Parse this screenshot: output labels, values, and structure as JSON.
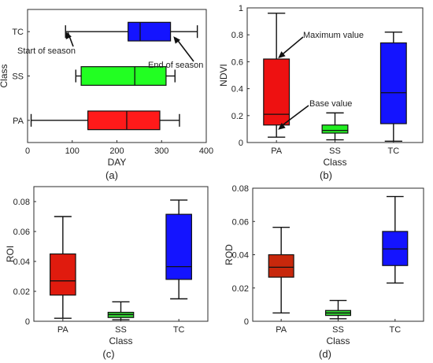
{
  "chart_data": [
    {
      "id": "a",
      "type": "box",
      "orientation": "horizontal",
      "panel_label": "(a)",
      "xlabel": "DAY",
      "ylabel": "Class",
      "xlim": [
        0,
        400
      ],
      "xticks": [
        0,
        100,
        200,
        300,
        400
      ],
      "categories": [
        "PA",
        "SS",
        "TC"
      ],
      "boxes": [
        {
          "category": "PA",
          "min": 8,
          "q1": 135,
          "median": 222,
          "q3": 296,
          "max": 340,
          "color": "#ff1a1a"
        },
        {
          "category": "SS",
          "min": 108,
          "q1": 120,
          "median": 240,
          "q3": 310,
          "max": 330,
          "color": "#22ff22"
        },
        {
          "category": "TC",
          "min": 85,
          "q1": 225,
          "median": 252,
          "q3": 320,
          "max": 380,
          "color": "#1414ff"
        }
      ],
      "annotations": [
        {
          "text": "Start of season",
          "target": {
            "category": "TC",
            "value": 85
          }
        },
        {
          "text": "End of season",
          "target": {
            "category": "TC",
            "value": 330
          }
        }
      ]
    },
    {
      "id": "b",
      "type": "box",
      "orientation": "vertical",
      "panel_label": "(b)",
      "xlabel": "Class",
      "ylabel": "NDVI",
      "ylim": [
        0,
        1
      ],
      "yticks": [
        0,
        0.2,
        0.4,
        0.6,
        0.8,
        1
      ],
      "ytick_labels": [
        "0",
        "0.2",
        "0.4",
        "0.6",
        "0.8",
        "1"
      ],
      "categories": [
        "PA",
        "SS",
        "TC"
      ],
      "boxes": [
        {
          "category": "PA",
          "min": 0.04,
          "q1": 0.13,
          "median": 0.21,
          "q3": 0.62,
          "max": 0.96,
          "color": "#ee1111"
        },
        {
          "category": "SS",
          "min": 0.02,
          "q1": 0.07,
          "median": 0.09,
          "q3": 0.13,
          "max": 0.22,
          "color": "#22ee22"
        },
        {
          "category": "TC",
          "min": 0.01,
          "q1": 0.14,
          "median": 0.37,
          "q3": 0.74,
          "max": 0.82,
          "color": "#1414ff"
        }
      ],
      "annotations": [
        {
          "text": "Maximum value",
          "target": {
            "category": "PA",
            "value": 0.62
          }
        },
        {
          "text": "Base value",
          "target": {
            "category": "PA",
            "value": 0.13
          }
        }
      ]
    },
    {
      "id": "c",
      "type": "box",
      "orientation": "vertical",
      "panel_label": "(c)",
      "xlabel": "Class",
      "ylabel": "ROI",
      "ylim": [
        0,
        0.09
      ],
      "yticks": [
        0,
        0.02,
        0.04,
        0.06,
        0.08
      ],
      "ytick_labels": [
        "0",
        "0.02",
        "0.04",
        "0.06",
        "0.08"
      ],
      "categories": [
        "PA",
        "SS",
        "TC"
      ],
      "boxes": [
        {
          "category": "PA",
          "min": 0.002,
          "q1": 0.0175,
          "median": 0.027,
          "q3": 0.045,
          "max": 0.07,
          "color": "#e01b0e"
        },
        {
          "category": "SS",
          "min": 0.001,
          "q1": 0.0025,
          "median": 0.0045,
          "q3": 0.006,
          "max": 0.013,
          "color": "#33d133"
        },
        {
          "category": "TC",
          "min": 0.015,
          "q1": 0.028,
          "median": 0.0365,
          "q3": 0.0715,
          "max": 0.081,
          "color": "#1414ff"
        }
      ]
    },
    {
      "id": "d",
      "type": "box",
      "orientation": "vertical",
      "panel_label": "(d)",
      "xlabel": "Class",
      "ylabel": "ROD",
      "ylim": [
        0,
        0.08
      ],
      "yticks": [
        0,
        0.02,
        0.04,
        0.06,
        0.08
      ],
      "ytick_labels": [
        "0",
        "0.02",
        "0.04",
        "0.06",
        "0.08"
      ],
      "categories": [
        "PA",
        "SS",
        "TC"
      ],
      "boxes": [
        {
          "category": "PA",
          "min": 0.005,
          "q1": 0.0265,
          "median": 0.0325,
          "q3": 0.04,
          "max": 0.0565,
          "color": "#c8280c"
        },
        {
          "category": "SS",
          "min": 0.0015,
          "q1": 0.0035,
          "median": 0.005,
          "q3": 0.0065,
          "max": 0.0125,
          "color": "#33d133"
        },
        {
          "category": "TC",
          "min": 0.023,
          "q1": 0.0335,
          "median": 0.0435,
          "q3": 0.054,
          "max": 0.075,
          "color": "#1414ff"
        }
      ]
    }
  ]
}
